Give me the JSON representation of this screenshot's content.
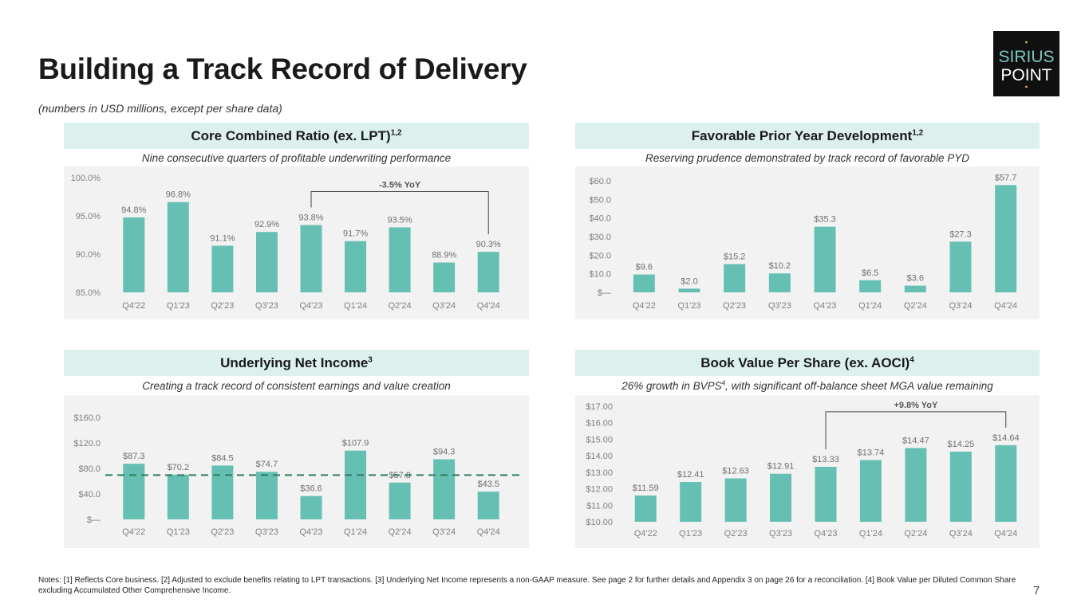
{
  "page": {
    "title": "Building a Track Record of Delivery",
    "subtitle": "(numbers in USD millions, except per share data)",
    "logo": {
      "line1": "SIRIUS",
      "line2": "POINT"
    },
    "notes": "Notes: [1] Reflects Core business. [2] Adjusted to exclude benefits relating to LPT transactions. [3] Underlying Net Income represents a non-GAAP measure. See page 2 for further details and Appendix 3 on page 26 for a reconciliation. [4] Book Value per Diluted Common Share excluding Accumulated Other Comprehensive Income.",
    "page_number": "7",
    "colors": {
      "bar": "#65c0b3",
      "header_bg": "#dcf0ee",
      "chart_bg": "#f2f2f2",
      "reference_line": "#2e7d5b"
    }
  },
  "panels": [
    {
      "title": "Core Combined Ratio (ex. LPT)",
      "sup": "1,2",
      "subtitle": "Nine consecutive quarters of profitable underwriting performance"
    },
    {
      "title": "Favorable Prior Year Development",
      "sup": "1,2",
      "subtitle": "Reserving prudence demonstrated by track record of favorable PYD"
    },
    {
      "title": "Underlying Net Income",
      "sup": "3",
      "subtitle": "Creating a track record of consistent earnings and value creation"
    },
    {
      "title": "Book Value Per Share (ex. AOCI)",
      "sup": "4",
      "subtitle_before": "26% growth in BVPS",
      "subtitle_sup": "4",
      "subtitle_after": ", with significant off-balance sheet MGA value remaining"
    }
  ],
  "chart_data": [
    {
      "type": "bar",
      "categories": [
        "Q4'22",
        "Q1'23",
        "Q2'23",
        "Q3'23",
        "Q4'23",
        "Q1'24",
        "Q2'24",
        "Q3'24",
        "Q4'24"
      ],
      "values": [
        94.8,
        96.8,
        91.1,
        92.9,
        93.8,
        91.7,
        93.5,
        88.9,
        90.3
      ],
      "labels": [
        "94.8%",
        "96.8%",
        "91.1%",
        "92.9%",
        "93.8%",
        "91.7%",
        "93.5%",
        "88.9%",
        "90.3%"
      ],
      "yticks": [
        "85.0%",
        "90.0%",
        "95.0%",
        "100.0%"
      ],
      "ylim": [
        85,
        100
      ],
      "grid": false,
      "annotation": {
        "text": "-3.5% YoY",
        "from_index": 4,
        "to_index": 8
      }
    },
    {
      "type": "bar",
      "categories": [
        "Q4'22",
        "Q1'23",
        "Q2'23",
        "Q3'23",
        "Q4'23",
        "Q1'24",
        "Q2'24",
        "Q3'24",
        "Q4'24"
      ],
      "values": [
        9.6,
        2.0,
        15.2,
        10.2,
        35.3,
        6.5,
        3.6,
        27.3,
        57.7
      ],
      "labels": [
        "$9.6",
        "$2.0",
        "$15.2",
        "$10.2",
        "$35.3",
        "$6.5",
        "$3.6",
        "$27.3",
        "$57.7"
      ],
      "yticks": [
        "$—",
        "$10.0",
        "$20.0",
        "$30.0",
        "$40.0",
        "$50.0",
        "$60.0"
      ],
      "ylim": [
        0,
        60
      ],
      "grid": false
    },
    {
      "type": "bar",
      "categories": [
        "Q4'22",
        "Q1'23",
        "Q2'23",
        "Q3'23",
        "Q4'23",
        "Q1'24",
        "Q2'24",
        "Q3'24",
        "Q4'24"
      ],
      "values": [
        87.3,
        70.2,
        84.5,
        74.7,
        36.6,
        107.9,
        57.8,
        94.3,
        43.5
      ],
      "labels": [
        "$87.3",
        "$70.2",
        "$84.5",
        "$74.7",
        "$36.6",
        "$107.9",
        "$57.8",
        "$94.3",
        "$43.5"
      ],
      "yticks": [
        "$—",
        "$40.0",
        "$80.0",
        "$120.0",
        "$160.0"
      ],
      "ylim": [
        0,
        160
      ],
      "grid": false,
      "reference_line": 69.6
    },
    {
      "type": "bar",
      "categories": [
        "Q4'22",
        "Q1'23",
        "Q2'23",
        "Q3'23",
        "Q4'23",
        "Q1'24",
        "Q2'24",
        "Q3'24",
        "Q4'24"
      ],
      "values": [
        11.59,
        12.41,
        12.63,
        12.91,
        13.33,
        13.74,
        14.47,
        14.25,
        14.64
      ],
      "labels": [
        "$11.59",
        "$12.41",
        "$12.63",
        "$12.91",
        "$13.33",
        "$13.74",
        "$14.47",
        "$14.25",
        "$14.64"
      ],
      "yticks": [
        "$10.00",
        "$11.00",
        "$12.00",
        "$13.00",
        "$14.00",
        "$15.00",
        "$16.00",
        "$17.00"
      ],
      "ylim": [
        10,
        17
      ],
      "grid": false,
      "annotation": {
        "text": "+9.8% YoY",
        "from_index": 4,
        "to_index": 8
      }
    }
  ]
}
